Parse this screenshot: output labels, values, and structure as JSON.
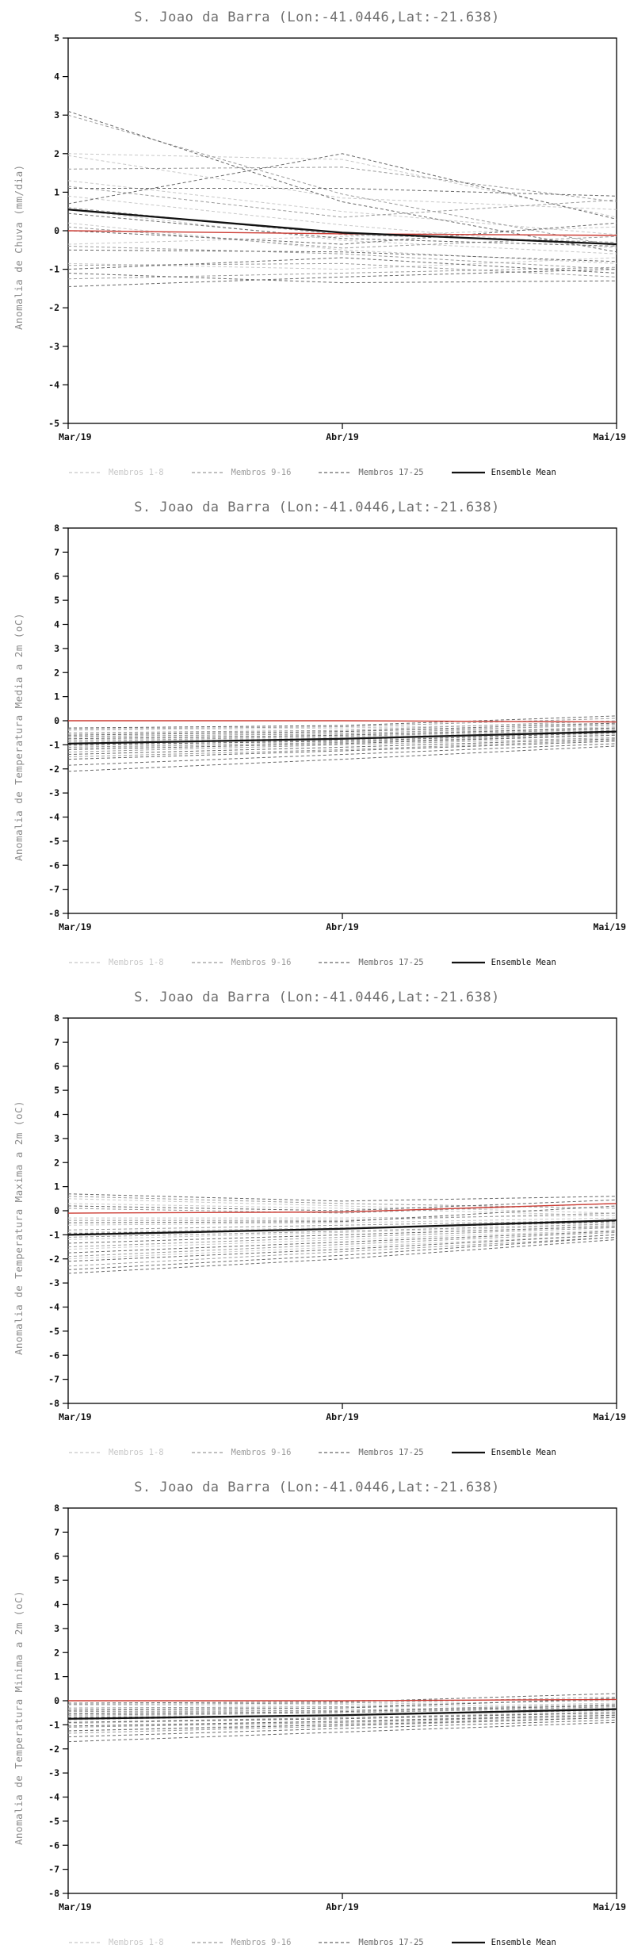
{
  "page": {
    "background": "#ffffff"
  },
  "colors": {
    "members_1_8": "#c8c8c8",
    "members_9_16": "#9a9a9a",
    "members_17_25": "#686868",
    "ensemble_mean": "#111111",
    "reference": "#cc3b33",
    "title": "#6e6e6e",
    "axis_label": "#8a8a8a",
    "tick_label": "#111111",
    "frame": "#000000"
  },
  "chart_data": [
    {
      "type": "line",
      "title": "S. Joao da Barra (Lon:-41.0446,Lat:-21.638)",
      "ylabel": "Anomalia de Chuva (mm/dia)",
      "ylim": [
        -5,
        5
      ],
      "ytick_step": 1,
      "x_labels": [
        "Mar/19",
        "Abr/19",
        "Mai/19"
      ],
      "member_groups": [
        {
          "label": "Membros 1-8",
          "color_key": "members_1_8",
          "series": [
            [
              2.0,
              1.85,
              0.35
            ],
            [
              1.95,
              0.85,
              0.55
            ],
            [
              1.3,
              0.5,
              -0.1
            ],
            [
              0.9,
              0.15,
              -0.45
            ],
            [
              0.55,
              -0.25,
              -0.6
            ],
            [
              0.2,
              -0.5,
              -0.85
            ],
            [
              -0.35,
              -0.15,
              0.1
            ],
            [
              -0.85,
              -1.0,
              -0.7
            ]
          ]
        },
        {
          "label": "Membros 9-16",
          "color_key": "members_9_16",
          "series": [
            [
              3.0,
              0.95,
              -0.4
            ],
            [
              1.6,
              1.65,
              0.75
            ],
            [
              1.15,
              0.35,
              0.8
            ],
            [
              0.6,
              -0.1,
              -0.3
            ],
            [
              0.1,
              -0.45,
              -0.15
            ],
            [
              -0.4,
              -0.6,
              -1.0
            ],
            [
              -0.9,
              -0.85,
              -1.2
            ],
            [
              -1.25,
              -1.1,
              -0.95
            ]
          ]
        },
        {
          "label": "Membros 17-25",
          "color_key": "members_17_25",
          "series": [
            [
              3.1,
              0.75,
              -0.55
            ],
            [
              0.7,
              2.0,
              0.3
            ],
            [
              1.1,
              1.1,
              0.9
            ],
            [
              0.45,
              -0.2,
              -0.4
            ],
            [
              0.0,
              -0.35,
              0.2
            ],
            [
              -0.5,
              -0.55,
              -0.8
            ],
            [
              -1.0,
              -0.7,
              -1.1
            ],
            [
              -1.45,
              -1.2,
              -1.0
            ],
            [
              -1.1,
              -1.35,
              -1.3
            ]
          ]
        }
      ],
      "reference_line": [
        0.0,
        -0.08,
        -0.12
      ],
      "ensemble_mean": {
        "label": "Ensemble Mean",
        "values": [
          0.55,
          -0.05,
          -0.35
        ]
      }
    },
    {
      "type": "line",
      "title": "S. Joao da Barra (Lon:-41.0446,Lat:-21.638)",
      "ylabel": "Anomalia de Temperatura Media a 2m (oC)",
      "ylim": [
        -8,
        8
      ],
      "ytick_step": 1,
      "x_labels": [
        "Mar/19",
        "Abr/19",
        "Mai/19"
      ],
      "member_groups": [
        {
          "label": "Membros 1-8",
          "color_key": "members_1_8",
          "series": [
            [
              -0.4,
              -0.3,
              -0.1
            ],
            [
              -0.55,
              -0.45,
              -0.2
            ],
            [
              -0.7,
              -0.5,
              -0.3
            ],
            [
              -0.8,
              -0.6,
              -0.25
            ],
            [
              -0.9,
              -0.7,
              -0.4
            ],
            [
              -1.0,
              -0.75,
              -0.45
            ],
            [
              -1.05,
              -0.8,
              -0.5
            ],
            [
              -1.15,
              -0.9,
              -0.55
            ]
          ]
        },
        {
          "label": "Membros 9-16",
          "color_key": "members_9_16",
          "series": [
            [
              -0.35,
              -0.25,
              0.1
            ],
            [
              -0.5,
              -0.4,
              0.0
            ],
            [
              -0.65,
              -0.55,
              -0.15
            ],
            [
              -0.85,
              -0.65,
              -0.35
            ],
            [
              -0.95,
              -0.8,
              -0.4
            ],
            [
              -1.1,
              -0.9,
              -0.6
            ],
            [
              -1.3,
              -1.0,
              -0.7
            ],
            [
              -1.5,
              -1.2,
              -0.8
            ]
          ]
        },
        {
          "label": "Membros 17-25",
          "color_key": "members_17_25",
          "series": [
            [
              -0.3,
              -0.2,
              0.2
            ],
            [
              -0.6,
              -0.45,
              -0.1
            ],
            [
              -0.75,
              -0.6,
              -0.3
            ],
            [
              -1.0,
              -0.85,
              -0.5
            ],
            [
              -1.2,
              -0.95,
              -0.6
            ],
            [
              -1.4,
              -1.1,
              -0.75
            ],
            [
              -1.6,
              -1.25,
              -0.85
            ],
            [
              -1.85,
              -1.4,
              -0.95
            ],
            [
              -2.1,
              -1.6,
              -1.05
            ]
          ]
        }
      ],
      "reference_line": [
        0.0,
        0.0,
        -0.05
      ],
      "ensemble_mean": {
        "label": "Ensemble Mean",
        "values": [
          -0.95,
          -0.75,
          -0.45
        ]
      }
    },
    {
      "type": "line",
      "title": "S. Joao da Barra (Lon:-41.0446,Lat:-21.638)",
      "ylabel": "Anomalia de Temperatura Maxima a 2m (oC)",
      "ylim": [
        -8,
        8
      ],
      "ytick_step": 1,
      "x_labels": [
        "Mar/19",
        "Abr/19",
        "Mai/19"
      ],
      "member_groups": [
        {
          "label": "Membros 1-8",
          "color_key": "members_1_8",
          "series": [
            [
              0.5,
              0.2,
              -0.1
            ],
            [
              0.3,
              0.1,
              -0.2
            ],
            [
              -0.3,
              -0.3,
              -0.2
            ],
            [
              -0.6,
              -0.5,
              -0.3
            ],
            [
              -0.9,
              -0.7,
              -0.5
            ],
            [
              -1.2,
              -0.9,
              -0.6
            ],
            [
              -1.6,
              -1.2,
              -0.8
            ],
            [
              -2.0,
              -1.5,
              -1.0
            ]
          ]
        },
        {
          "label": "Membros 9-16",
          "color_key": "members_9_16",
          "series": [
            [
              0.6,
              0.3,
              0.1
            ],
            [
              0.1,
              -0.1,
              0.3
            ],
            [
              -0.4,
              -0.4,
              -0.1
            ],
            [
              -0.8,
              -0.6,
              -0.4
            ],
            [
              -1.1,
              -0.85,
              -0.55
            ],
            [
              -1.5,
              -1.1,
              -0.7
            ],
            [
              -1.9,
              -1.4,
              -0.9
            ],
            [
              -2.3,
              -1.7,
              -1.1
            ]
          ]
        },
        {
          "label": "Membros 17-25",
          "color_key": "members_17_25",
          "series": [
            [
              0.7,
              0.4,
              0.6
            ],
            [
              0.2,
              0.0,
              0.45
            ],
            [
              -0.5,
              -0.45,
              0.2
            ],
            [
              -0.95,
              -0.75,
              -0.45
            ],
            [
              -1.35,
              -1.0,
              -0.65
            ],
            [
              -1.75,
              -1.3,
              -0.85
            ],
            [
              -2.1,
              -1.6,
              -1.0
            ],
            [
              -2.45,
              -1.85,
              -1.1
            ],
            [
              -2.6,
              -2.0,
              -1.2
            ]
          ]
        }
      ],
      "reference_line": [
        -0.1,
        -0.05,
        0.3
      ],
      "ensemble_mean": {
        "label": "Ensemble Mean",
        "values": [
          -1.0,
          -0.75,
          -0.4
        ]
      }
    },
    {
      "type": "line",
      "title": "S. Joao da Barra (Lon:-41.0446,Lat:-21.638)",
      "ylabel": "Anomalia de Temperatura Minima a 2m (oC)",
      "ylim": [
        -8,
        8
      ],
      "ytick_step": 1,
      "x_labels": [
        "Mar/19",
        "Abr/19",
        "Mai/19"
      ],
      "member_groups": [
        {
          "label": "Membros 1-8",
          "color_key": "members_1_8",
          "series": [
            [
              -0.2,
              -0.15,
              0.0
            ],
            [
              -0.35,
              -0.3,
              -0.1
            ],
            [
              -0.5,
              -0.4,
              -0.2
            ],
            [
              -0.65,
              -0.5,
              -0.3
            ],
            [
              -0.8,
              -0.6,
              -0.35
            ],
            [
              -0.95,
              -0.7,
              -0.45
            ],
            [
              -1.1,
              -0.85,
              -0.55
            ],
            [
              -1.25,
              -0.95,
              -0.65
            ]
          ]
        },
        {
          "label": "Membros 9-16",
          "color_key": "members_9_16",
          "series": [
            [
              -0.15,
              -0.1,
              0.15
            ],
            [
              -0.3,
              -0.25,
              0.05
            ],
            [
              -0.45,
              -0.4,
              -0.15
            ],
            [
              -0.6,
              -0.5,
              -0.25
            ],
            [
              -0.75,
              -0.6,
              -0.4
            ],
            [
              -0.9,
              -0.7,
              -0.5
            ],
            [
              -1.1,
              -0.9,
              -0.6
            ],
            [
              -1.35,
              -1.05,
              -0.7
            ]
          ]
        },
        {
          "label": "Membros 17-25",
          "color_key": "members_17_25",
          "series": [
            [
              -0.1,
              -0.05,
              0.3
            ],
            [
              -0.4,
              -0.3,
              0.1
            ],
            [
              -0.55,
              -0.45,
              -0.2
            ],
            [
              -0.7,
              -0.6,
              -0.35
            ],
            [
              -0.9,
              -0.75,
              -0.5
            ],
            [
              -1.05,
              -0.85,
              -0.6
            ],
            [
              -1.25,
              -1.0,
              -0.7
            ],
            [
              -1.5,
              -1.15,
              -0.8
            ],
            [
              -1.7,
              -1.3,
              -0.9
            ]
          ]
        }
      ],
      "reference_line": [
        0.0,
        0.0,
        0.05
      ],
      "ensemble_mean": {
        "label": "Ensemble Mean",
        "values": [
          -0.75,
          -0.6,
          -0.35
        ]
      }
    }
  ]
}
